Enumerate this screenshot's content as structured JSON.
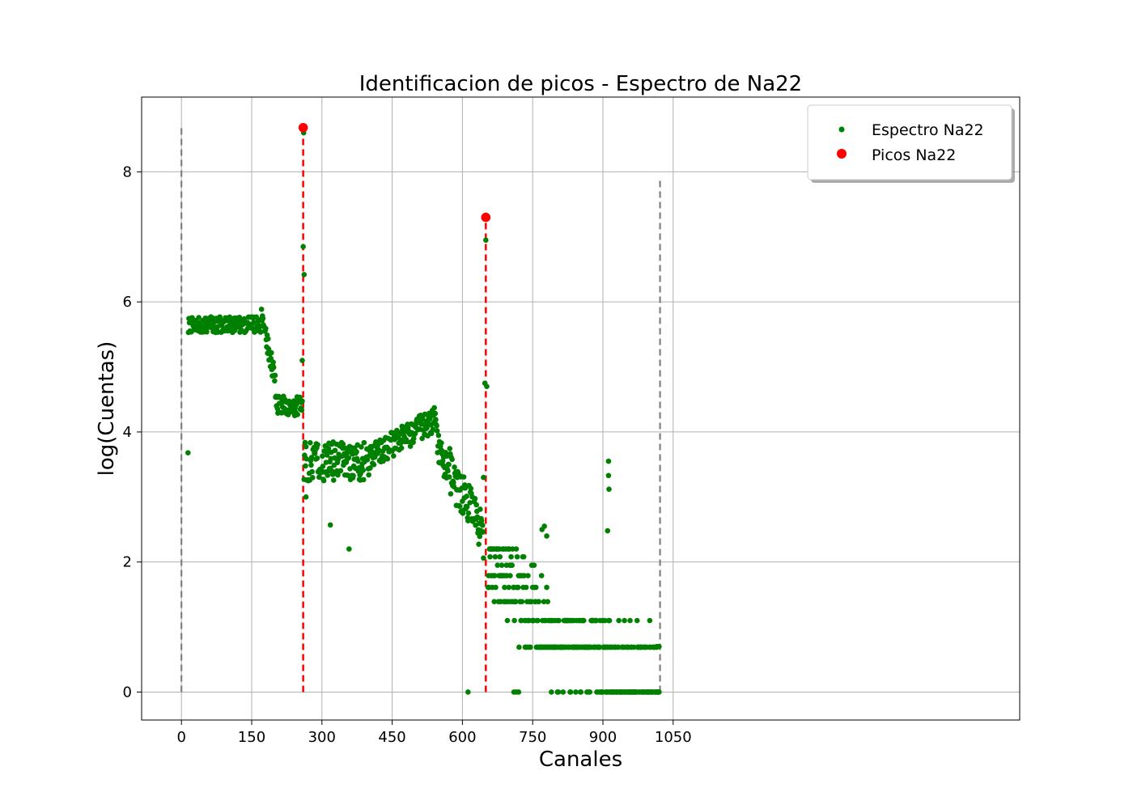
{
  "chart_data": {
    "type": "scatter",
    "title": "Identificacion de picos - Espectro de Na22",
    "xlabel": "Canales",
    "ylabel": "log(Cuentas)",
    "xlim": [
      -85,
      1790
    ],
    "ylim": [
      -0.43,
      9.15
    ],
    "xticks": [
      0,
      150,
      300,
      450,
      600,
      750,
      900,
      1050
    ],
    "yticks": [
      0,
      2,
      4,
      6,
      8
    ],
    "grid": true,
    "legend_placement": "upper right",
    "series": [
      {
        "name": "Espectro Na22",
        "color": "#008000",
        "marker": "point",
        "segments": [
          {
            "x0": 15,
            "x1": 170,
            "base": 5.65,
            "amp": 0.12
          },
          {
            "x0": 171,
            "x1": 200,
            "base": 5.8,
            "to": 4.8,
            "amp": 0.15
          },
          {
            "x0": 201,
            "x1": 258,
            "base": 4.4,
            "amp": 0.15
          },
          {
            "x0": 262,
            "x1": 400,
            "base": 3.55,
            "amp": 0.3
          },
          {
            "x0": 401,
            "x1": 545,
            "base": 3.6,
            "to": 4.2,
            "amp": 0.2
          },
          {
            "x0": 546,
            "x1": 645,
            "base": 3.8,
            "to": 2.4,
            "amp": 0.35
          },
          {
            "x0": 655,
            "x1": 780,
            "base": 2.2,
            "to": 1.0,
            "amp": 0.7
          },
          {
            "x0": 781,
            "x1": 1020,
            "base": 0.8,
            "to": 0.2,
            "amp": 0.6
          }
        ],
        "points": [
          [
            14,
            3.68
          ],
          [
            258,
            5.1
          ],
          [
            260,
            6.85
          ],
          [
            261,
            8.6
          ],
          [
            262,
            6.42
          ],
          [
            266,
            3.0
          ],
          [
            318,
            2.57
          ],
          [
            358,
            2.2
          ],
          [
            612,
            0.0
          ],
          [
            645,
            3.3
          ],
          [
            648,
            4.75
          ],
          [
            650,
            6.95
          ],
          [
            652,
            4.7
          ],
          [
            912,
            3.55
          ],
          [
            912,
            3.33
          ],
          [
            913,
            3.12
          ],
          [
            910,
            2.48
          ],
          [
            775,
            2.55
          ],
          [
            770,
            2.5
          ],
          [
            780,
            2.4
          ],
          [
            710,
            0.0
          ],
          [
            715,
            0.0
          ],
          [
            720,
            0.0
          ],
          [
            790,
            0.0
          ],
          [
            960,
            0.0
          ],
          [
            1000,
            1.1
          ],
          [
            958,
            1.1
          ],
          [
            1018,
            0.0
          ],
          [
            1020,
            0.7
          ],
          [
            1015,
            0.7
          ]
        ]
      },
      {
        "name": "Picos Na22",
        "color": "#ff0000",
        "marker": "circle",
        "points": [
          [
            260,
            8.68
          ],
          [
            650,
            7.3
          ]
        ]
      }
    ],
    "vlines": [
      {
        "x": 0,
        "color": "#808080",
        "style": "dashed",
        "ymin": 0,
        "ymax": 8.7
      },
      {
        "x": 1022,
        "color": "#808080",
        "style": "dashed",
        "ymin": 0,
        "ymax": 7.9
      },
      {
        "x": 260,
        "color": "#ff0000",
        "style": "dashed",
        "ymin": 0,
        "ymax": 8.68
      },
      {
        "x": 650,
        "color": "#ff0000",
        "style": "dashed",
        "ymin": 0,
        "ymax": 7.3
      }
    ]
  }
}
